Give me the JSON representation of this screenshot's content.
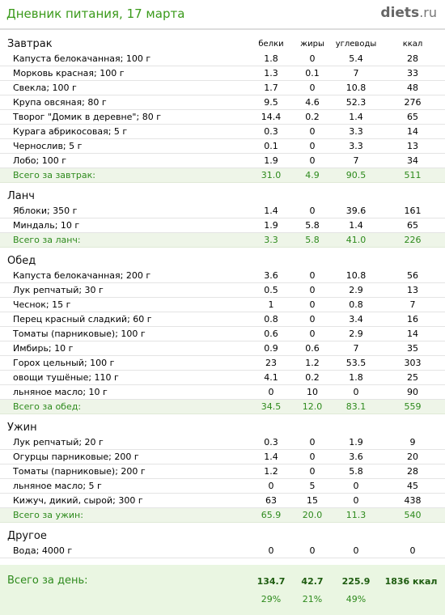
{
  "header": {
    "title": "Дневник питания, 17 марта",
    "logo_main": "diets",
    "logo_tld": ".ru"
  },
  "columns": [
    "белки",
    "жиры",
    "углеводы",
    "ккал"
  ],
  "meals": [
    {
      "title": "Завтрак",
      "items": [
        {
          "name": "Капуста белокачанная; 100 г",
          "p": "1.8",
          "f": "0",
          "c": "5.4",
          "k": "28"
        },
        {
          "name": "Морковь красная; 100 г",
          "p": "1.3",
          "f": "0.1",
          "c": "7",
          "k": "33"
        },
        {
          "name": "Свекла; 100 г",
          "p": "1.7",
          "f": "0",
          "c": "10.8",
          "k": "48"
        },
        {
          "name": "Крупа овсяная; 80 г",
          "p": "9.5",
          "f": "4.6",
          "c": "52.3",
          "k": "276"
        },
        {
          "name": "Творог \"Домик в деревне\"; 80 г",
          "p": "14.4",
          "f": "0.2",
          "c": "1.4",
          "k": "65"
        },
        {
          "name": "Курага абрикосовая; 5 г",
          "p": "0.3",
          "f": "0",
          "c": "3.3",
          "k": "14"
        },
        {
          "name": "Чернослив; 5 г",
          "p": "0.1",
          "f": "0",
          "c": "3.3",
          "k": "13"
        },
        {
          "name": "Лобо; 100 г",
          "p": "1.9",
          "f": "0",
          "c": "7",
          "k": "34"
        }
      ],
      "total": {
        "name": "Всего за завтрак:",
        "p": "31.0",
        "f": "4.9",
        "c": "90.5",
        "k": "511"
      }
    },
    {
      "title": "Ланч",
      "items": [
        {
          "name": "Яблоки; 350 г",
          "p": "1.4",
          "f": "0",
          "c": "39.6",
          "k": "161"
        },
        {
          "name": "Миндаль; 10 г",
          "p": "1.9",
          "f": "5.8",
          "c": "1.4",
          "k": "65"
        }
      ],
      "total": {
        "name": "Всего за ланч:",
        "p": "3.3",
        "f": "5.8",
        "c": "41.0",
        "k": "226"
      }
    },
    {
      "title": "Обед",
      "items": [
        {
          "name": "Капуста белокачанная; 200 г",
          "p": "3.6",
          "f": "0",
          "c": "10.8",
          "k": "56"
        },
        {
          "name": "Лук репчатый; 30 г",
          "p": "0.5",
          "f": "0",
          "c": "2.9",
          "k": "13"
        },
        {
          "name": "Чеснок; 15 г",
          "p": "1",
          "f": "0",
          "c": "0.8",
          "k": "7"
        },
        {
          "name": "Перец красный сладкий; 60 г",
          "p": "0.8",
          "f": "0",
          "c": "3.4",
          "k": "16"
        },
        {
          "name": "Томаты (парниковые); 100 г",
          "p": "0.6",
          "f": "0",
          "c": "2.9",
          "k": "14"
        },
        {
          "name": "Имбирь; 10 г",
          "p": "0.9",
          "f": "0.6",
          "c": "7",
          "k": "35"
        },
        {
          "name": "Горох цельный; 100 г",
          "p": "23",
          "f": "1.2",
          "c": "53.5",
          "k": "303"
        },
        {
          "name": "овощи тушёные; 110 г",
          "p": "4.1",
          "f": "0.2",
          "c": "1.8",
          "k": "25"
        },
        {
          "name": "льняное масло; 10 г",
          "p": "0",
          "f": "10",
          "c": "0",
          "k": "90"
        }
      ],
      "total": {
        "name": "Всего за обед:",
        "p": "34.5",
        "f": "12.0",
        "c": "83.1",
        "k": "559"
      }
    },
    {
      "title": "Ужин",
      "items": [
        {
          "name": "Лук репчатый; 20 г",
          "p": "0.3",
          "f": "0",
          "c": "1.9",
          "k": "9"
        },
        {
          "name": "Огурцы парниковые; 200 г",
          "p": "1.4",
          "f": "0",
          "c": "3.6",
          "k": "20"
        },
        {
          "name": "Томаты (парниковые); 200 г",
          "p": "1.2",
          "f": "0",
          "c": "5.8",
          "k": "28"
        },
        {
          "name": "льняное масло; 5 г",
          "p": "0",
          "f": "5",
          "c": "0",
          "k": "45"
        },
        {
          "name": "Кижуч, дикий, сырой; 300 г",
          "p": "63",
          "f": "15",
          "c": "0",
          "k": "438"
        }
      ],
      "total": {
        "name": "Всего за ужин:",
        "p": "65.9",
        "f": "20.0",
        "c": "11.3",
        "k": "540"
      }
    },
    {
      "title": "Другое",
      "items": [
        {
          "name": "Вода; 4000 г",
          "p": "0",
          "f": "0",
          "c": "0",
          "k": "0"
        }
      ],
      "total": null
    }
  ],
  "day_total": {
    "label": "Всего за день:",
    "p": "134.7",
    "f": "42.7",
    "c": "225.9",
    "k": "1836 ккал",
    "p_pct": "29%",
    "f_pct": "21%",
    "c_pct": "49%"
  }
}
